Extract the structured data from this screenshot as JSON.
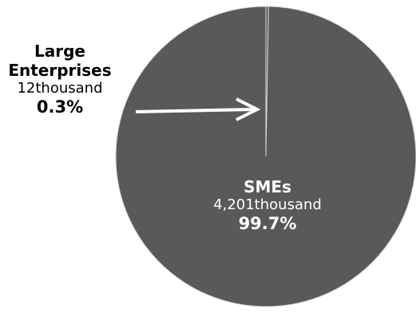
{
  "chart_data": {
    "type": "pie",
    "slices": [
      {
        "name": "SMEs",
        "value": 4201,
        "value_label": "4,201thousand",
        "percent_label": "99.7%",
        "percent": 99.7,
        "color": "#595959"
      },
      {
        "name": "Large Enterprises",
        "value": 12,
        "value_label": "12thousand",
        "percent_label": "0.3%",
        "percent": 0.3,
        "color": "#595959"
      }
    ],
    "slice_border_color": "#d9d9d9",
    "arrow_color": "#ffffff"
  },
  "labels": {
    "large": {
      "name_line1": "Large",
      "name_line2": "Enterprises",
      "value": "12thousand",
      "percent": "0.3%"
    },
    "sme": {
      "name": "SMEs",
      "value": "4,201thousand",
      "percent": "99.7%"
    }
  }
}
